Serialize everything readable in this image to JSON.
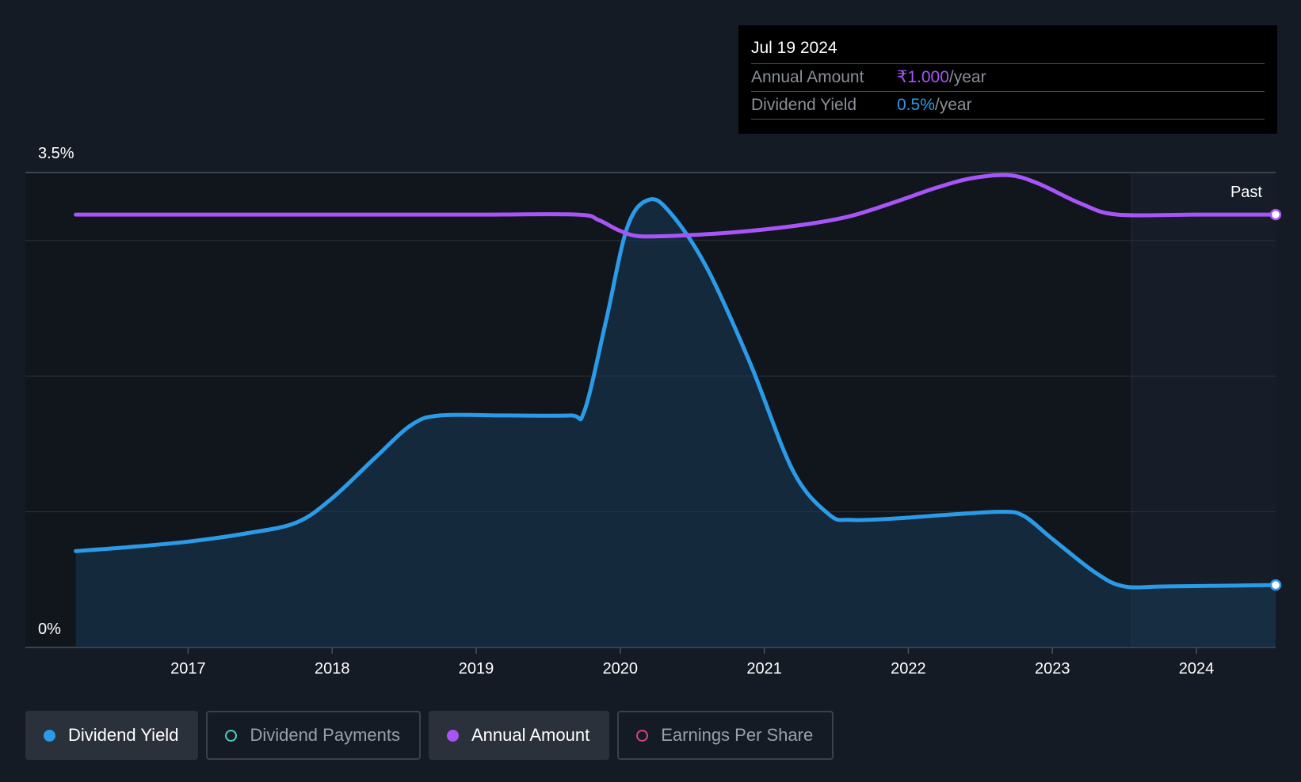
{
  "tooltip": {
    "date": "Jul 19 2024",
    "rows": [
      {
        "label": "Annual Amount",
        "value": "₹1.000",
        "unit": "/year",
        "color": "#a855f7"
      },
      {
        "label": "Dividend Yield",
        "value": "0.5%",
        "unit": "/year",
        "color": "#2b9be8"
      }
    ]
  },
  "legend": [
    {
      "label": "Dividend Yield",
      "color": "#2b9be8",
      "active": true
    },
    {
      "label": "Dividend Payments",
      "color": "#4ecdc4",
      "active": false
    },
    {
      "label": "Annual Amount",
      "color": "#a855f7",
      "active": true
    },
    {
      "label": "Earnings Per Share",
      "color": "#d6457a",
      "active": false
    }
  ],
  "chart_data": {
    "type": "line",
    "y_top_label": "3.5%",
    "y_bottom_label": "0%",
    "ylim": [
      0,
      3.5
    ],
    "xlim": [
      2015.87,
      2024.55
    ],
    "x_ticks": [
      "2017",
      "2018",
      "2019",
      "2020",
      "2021",
      "2022",
      "2023",
      "2024"
    ],
    "past_label": "Past",
    "past_start": 2023.55,
    "grid": true,
    "series": [
      {
        "name": "Dividend Yield",
        "color": "#2b9be8",
        "fill": true,
        "points": [
          [
            2016.22,
            0.71
          ],
          [
            2016.6,
            0.74
          ],
          [
            2017.0,
            0.78
          ],
          [
            2017.4,
            0.84
          ],
          [
            2017.75,
            0.92
          ],
          [
            2018.0,
            1.1
          ],
          [
            2018.3,
            1.4
          ],
          [
            2018.55,
            1.64
          ],
          [
            2018.75,
            1.71
          ],
          [
            2019.2,
            1.71
          ],
          [
            2019.65,
            1.71
          ],
          [
            2019.75,
            1.74
          ],
          [
            2019.9,
            2.4
          ],
          [
            2020.05,
            3.1
          ],
          [
            2020.2,
            3.3
          ],
          [
            2020.35,
            3.2
          ],
          [
            2020.6,
            2.8
          ],
          [
            2020.9,
            2.1
          ],
          [
            2021.2,
            1.3
          ],
          [
            2021.45,
            0.98
          ],
          [
            2021.6,
            0.94
          ],
          [
            2021.9,
            0.95
          ],
          [
            2022.3,
            0.98
          ],
          [
            2022.65,
            1.0
          ],
          [
            2022.8,
            0.97
          ],
          [
            2023.0,
            0.8
          ],
          [
            2023.3,
            0.55
          ],
          [
            2023.5,
            0.45
          ],
          [
            2023.8,
            0.45
          ],
          [
            2024.55,
            0.46
          ]
        ]
      },
      {
        "name": "Annual Amount",
        "color": "#a855f7",
        "fill": false,
        "points": [
          [
            2016.22,
            3.19
          ],
          [
            2017.0,
            3.19
          ],
          [
            2018.0,
            3.19
          ],
          [
            2019.0,
            3.19
          ],
          [
            2019.7,
            3.19
          ],
          [
            2019.85,
            3.15
          ],
          [
            2020.0,
            3.07
          ],
          [
            2020.15,
            3.03
          ],
          [
            2020.5,
            3.04
          ],
          [
            2020.9,
            3.07
          ],
          [
            2021.3,
            3.12
          ],
          [
            2021.6,
            3.18
          ],
          [
            2021.9,
            3.28
          ],
          [
            2022.2,
            3.39
          ],
          [
            2022.45,
            3.46
          ],
          [
            2022.7,
            3.48
          ],
          [
            2022.9,
            3.42
          ],
          [
            2023.2,
            3.27
          ],
          [
            2023.45,
            3.19
          ],
          [
            2024.0,
            3.19
          ],
          [
            2024.55,
            3.19
          ]
        ]
      }
    ]
  }
}
